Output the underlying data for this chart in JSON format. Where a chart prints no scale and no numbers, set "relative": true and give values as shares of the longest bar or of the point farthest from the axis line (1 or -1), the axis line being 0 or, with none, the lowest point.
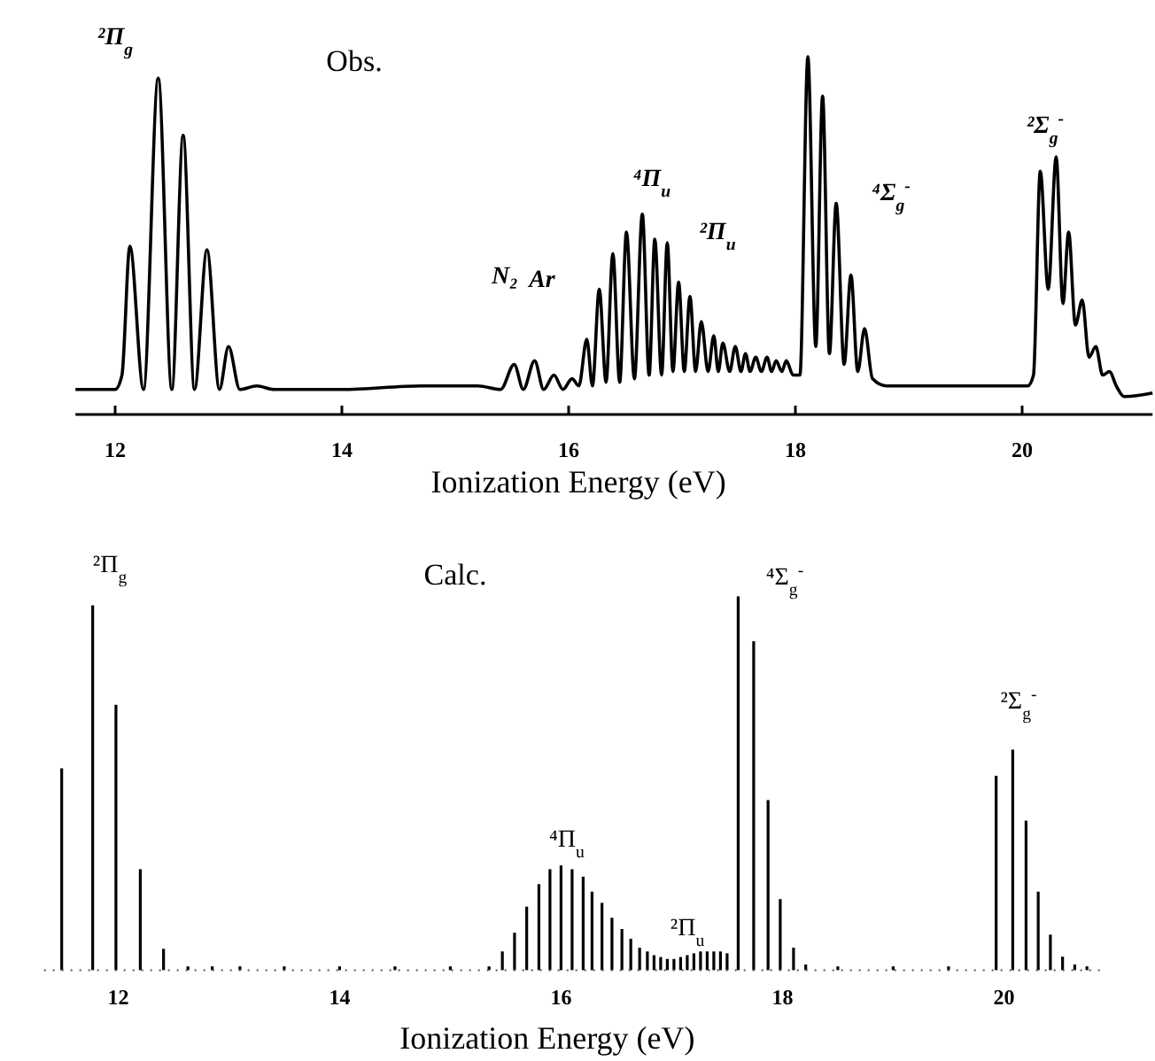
{
  "chart_data": [
    {
      "type": "line",
      "title": "Obs.",
      "xlabel": "Ionization Energy (eV)",
      "relative": true,
      "color": "#000000",
      "xlim": [
        11.65,
        21.15
      ],
      "xticks": [
        12,
        14,
        16,
        18,
        20
      ],
      "x": [
        11.65,
        12.0,
        12.06,
        12.13,
        12.25,
        12.38,
        12.5,
        12.6,
        12.7,
        12.81,
        12.92,
        13.0,
        13.1,
        13.25,
        13.4,
        14.0,
        14.7,
        15.0,
        15.2,
        15.4,
        15.52,
        15.6,
        15.7,
        15.78,
        15.87,
        15.95,
        16.03,
        16.09,
        16.16,
        16.21,
        16.27,
        16.33,
        16.39,
        16.45,
        16.51,
        16.58,
        16.65,
        16.71,
        16.76,
        16.82,
        16.87,
        16.92,
        16.97,
        17.02,
        17.07,
        17.12,
        17.17,
        17.23,
        17.28,
        17.32,
        17.36,
        17.42,
        17.47,
        17.52,
        17.56,
        17.6,
        17.65,
        17.7,
        17.75,
        17.79,
        17.83,
        17.88,
        17.92,
        17.98,
        18.04,
        18.11,
        18.18,
        18.24,
        18.3,
        18.36,
        18.43,
        18.49,
        18.55,
        18.61,
        18.68,
        18.8,
        19.5,
        20.05,
        20.1,
        20.16,
        20.23,
        20.3,
        20.36,
        20.41,
        20.47,
        20.53,
        20.59,
        20.65,
        20.71,
        20.77,
        20.83,
        20.9,
        21.15
      ],
      "values": [
        0.07,
        0.07,
        0.11,
        0.47,
        0.07,
        0.94,
        0.07,
        0.78,
        0.07,
        0.46,
        0.07,
        0.19,
        0.07,
        0.08,
        0.07,
        0.07,
        0.08,
        0.08,
        0.08,
        0.07,
        0.14,
        0.07,
        0.15,
        0.07,
        0.11,
        0.07,
        0.1,
        0.08,
        0.21,
        0.08,
        0.35,
        0.09,
        0.45,
        0.09,
        0.51,
        0.1,
        0.56,
        0.11,
        0.49,
        0.11,
        0.48,
        0.12,
        0.37,
        0.12,
        0.33,
        0.12,
        0.26,
        0.12,
        0.22,
        0.12,
        0.2,
        0.12,
        0.19,
        0.12,
        0.17,
        0.12,
        0.16,
        0.12,
        0.16,
        0.12,
        0.15,
        0.12,
        0.15,
        0.11,
        0.11,
        1.0,
        0.19,
        0.89,
        0.17,
        0.59,
        0.14,
        0.39,
        0.12,
        0.24,
        0.1,
        0.08,
        0.08,
        0.08,
        0.11,
        0.68,
        0.35,
        0.72,
        0.31,
        0.51,
        0.25,
        0.32,
        0.16,
        0.19,
        0.11,
        0.12,
        0.08,
        0.05,
        0.06
      ],
      "annotations": [
        "²Π$_{g}$",
        "N₂",
        "Ar",
        "⁴Π$_{u}$",
        "²Π$_{u}$",
        "⁴Σ$_{g}$$^{-}$",
        "²Σ$_{g}$$^{-}$"
      ]
    },
    {
      "type": "bar",
      "title": "Calc.",
      "xlabel": "Ionization Energy (eV)",
      "relative": true,
      "color": "#000000",
      "xlim": [
        11.33,
        20.9
      ],
      "xticks": [
        12,
        14,
        16,
        18,
        20
      ],
      "x": [
        11.49,
        11.77,
        11.98,
        12.2,
        12.41,
        12.63,
        12.85,
        13.1,
        13.5,
        14.0,
        14.5,
        15.0,
        15.35,
        15.47,
        15.58,
        15.69,
        15.8,
        15.9,
        16.0,
        16.1,
        16.2,
        16.28,
        16.37,
        16.46,
        16.55,
        16.63,
        16.71,
        16.78,
        16.84,
        16.9,
        16.96,
        17.02,
        17.08,
        17.14,
        17.2,
        17.26,
        17.32,
        17.38,
        17.44,
        17.5,
        17.6,
        17.74,
        17.87,
        17.98,
        18.1,
        18.21,
        18.5,
        19.0,
        19.5,
        19.93,
        20.08,
        20.2,
        20.31,
        20.42,
        20.53,
        20.64,
        20.75
      ],
      "values": [
        0.54,
        0.976,
        0.71,
        0.27,
        0.057,
        0.01,
        0.01,
        0.01,
        0.01,
        0.01,
        0.01,
        0.01,
        0.01,
        0.05,
        0.1,
        0.17,
        0.23,
        0.27,
        0.28,
        0.27,
        0.25,
        0.21,
        0.18,
        0.14,
        0.11,
        0.084,
        0.06,
        0.05,
        0.04,
        0.035,
        0.03,
        0.03,
        0.035,
        0.04,
        0.045,
        0.05,
        0.05,
        0.05,
        0.05,
        0.045,
        1.0,
        0.88,
        0.455,
        0.19,
        0.06,
        0.015,
        0.01,
        0.01,
        0.01,
        0.52,
        0.59,
        0.4,
        0.21,
        0.095,
        0.036,
        0.015,
        0.01
      ],
      "annotations": [
        "²Π$_{g}$",
        "⁴Π$_{u}$",
        "²Π$_{u}$",
        "⁴Σ$_{g}$$^{-}$",
        "²Σ$_{g}$$^{-}$"
      ]
    }
  ]
}
